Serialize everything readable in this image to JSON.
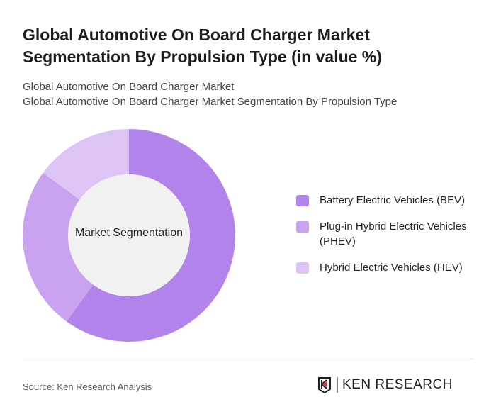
{
  "title": "Global Automotive On Board Charger Market Segmentation By Propulsion Type (in value %)",
  "subtitle1": "Global Automotive On Board Charger Market",
  "subtitle2": "Global Automotive On Board Charger Market Segmentation By Propulsion Type",
  "source": "Source: Ken Research Analysis",
  "logo_text": "KEN RESEARCH",
  "chart_data": {
    "type": "pie",
    "donut": true,
    "center_label": "Market Segmentation",
    "categories": [
      "Battery Electric Vehicles (BEV)",
      "Plug-in Hybrid Electric Vehicles (PHEV)",
      "Hybrid Electric Vehicles (HEV)"
    ],
    "values": [
      60,
      25,
      15
    ],
    "colors": [
      "#b383ec",
      "#c9a3f0",
      "#dcc5f5"
    ],
    "legend_position": "right"
  }
}
